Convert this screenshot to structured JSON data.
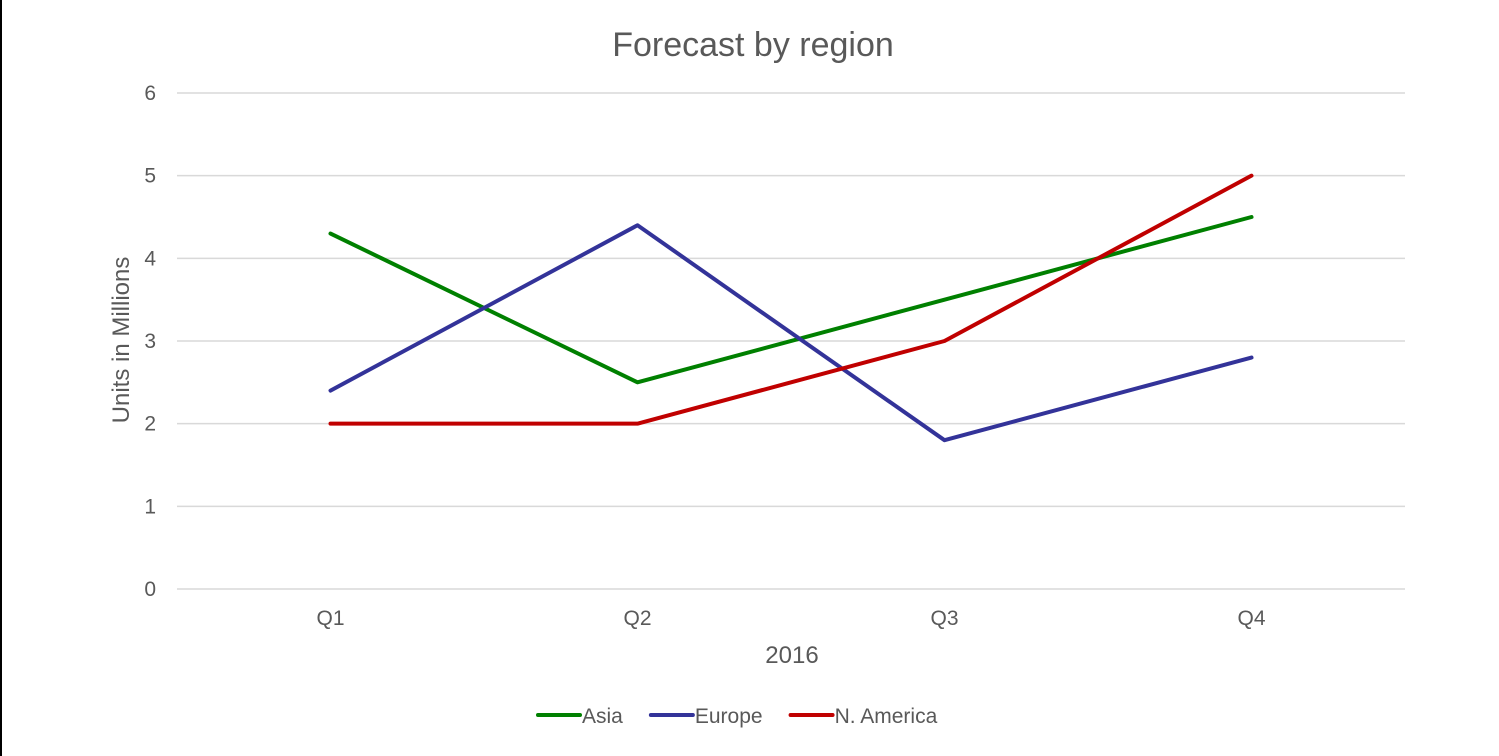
{
  "chart_data": {
    "type": "line",
    "title": "Forecast by region",
    "xlabel": "2016",
    "ylabel": "Units in Millions",
    "categories": [
      "Q1",
      "Q2",
      "Q3",
      "Q4"
    ],
    "ylim": [
      0,
      6
    ],
    "yticks": [
      0,
      1,
      2,
      3,
      4,
      5,
      6
    ],
    "grid": true,
    "legend_position": "bottom",
    "series": [
      {
        "name": "Asia",
        "color": "#008000",
        "values": [
          4.3,
          2.5,
          3.5,
          4.5
        ]
      },
      {
        "name": "Europe",
        "color": "#333399",
        "values": [
          2.4,
          4.4,
          1.8,
          2.8
        ]
      },
      {
        "name": "N. America",
        "color": "#c00000",
        "values": [
          2.0,
          2.0,
          3.0,
          5.0
        ]
      }
    ]
  }
}
